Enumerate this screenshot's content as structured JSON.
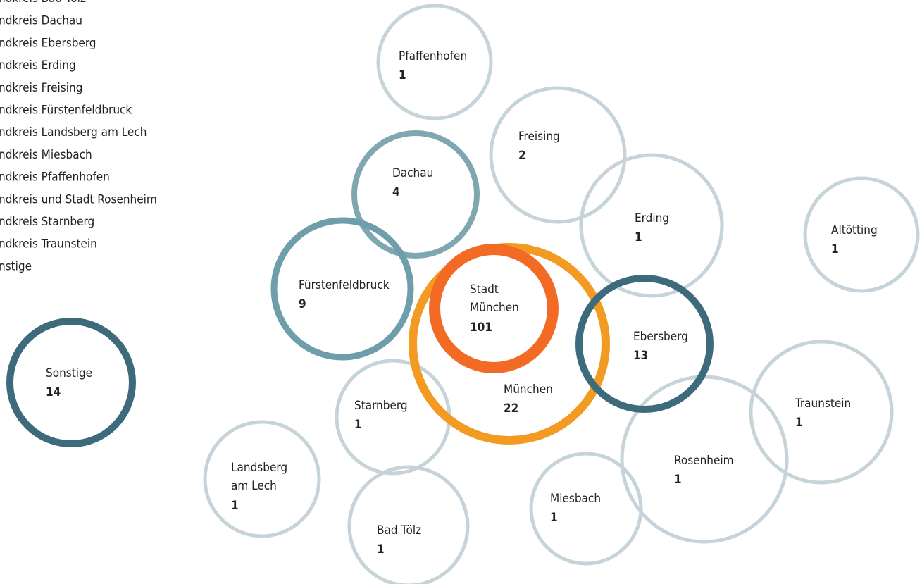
{
  "legend_list": [
    "ndkreis Bad Tölz",
    "ndkreis Dachau",
    "ndkreis Ebersberg",
    "ndkreis Erding",
    "ndkreis Freising",
    "ndkreis Fürstenfeldbruck",
    "ndkreis Landsberg am Lech",
    "ndkreis Miesbach",
    "ndkreis Pfaffenhofen",
    "ndkreis und Stadt Rosenheim",
    "ndkreis Starnberg",
    "ndkreis Traunstein",
    "nstige"
  ],
  "nodes": [
    {
      "label": [
        "Pfaffenhofen"
      ],
      "value": "1"
    },
    {
      "label": [
        "Freising"
      ],
      "value": "2"
    },
    {
      "label": [
        "Erding"
      ],
      "value": "1"
    },
    {
      "label": [
        "Altötting"
      ],
      "value": "1"
    },
    {
      "label": [
        "Starnberg"
      ],
      "value": "1"
    },
    {
      "label": [
        "Traunstein"
      ],
      "value": "1"
    },
    {
      "label": [
        "Rosenheim"
      ],
      "value": "1"
    },
    {
      "label": [
        "Landsberg",
        "am Lech"
      ],
      "value": "1"
    },
    {
      "label": [
        "Bad Tölz"
      ],
      "value": "1"
    },
    {
      "label": [
        "Miesbach"
      ],
      "value": "1"
    },
    {
      "label": [
        "Dachau"
      ],
      "value": "4"
    },
    {
      "label": [
        "Fürstenfeldbruck"
      ],
      "value": "9"
    },
    {
      "label": [
        "München"
      ],
      "value": "22"
    },
    {
      "label": [
        "Stadt",
        "München"
      ],
      "value": "101"
    },
    {
      "label": [
        "Ebersberg"
      ],
      "value": "13"
    },
    {
      "label": [
        "Sonstige"
      ],
      "value": "14"
    }
  ]
}
